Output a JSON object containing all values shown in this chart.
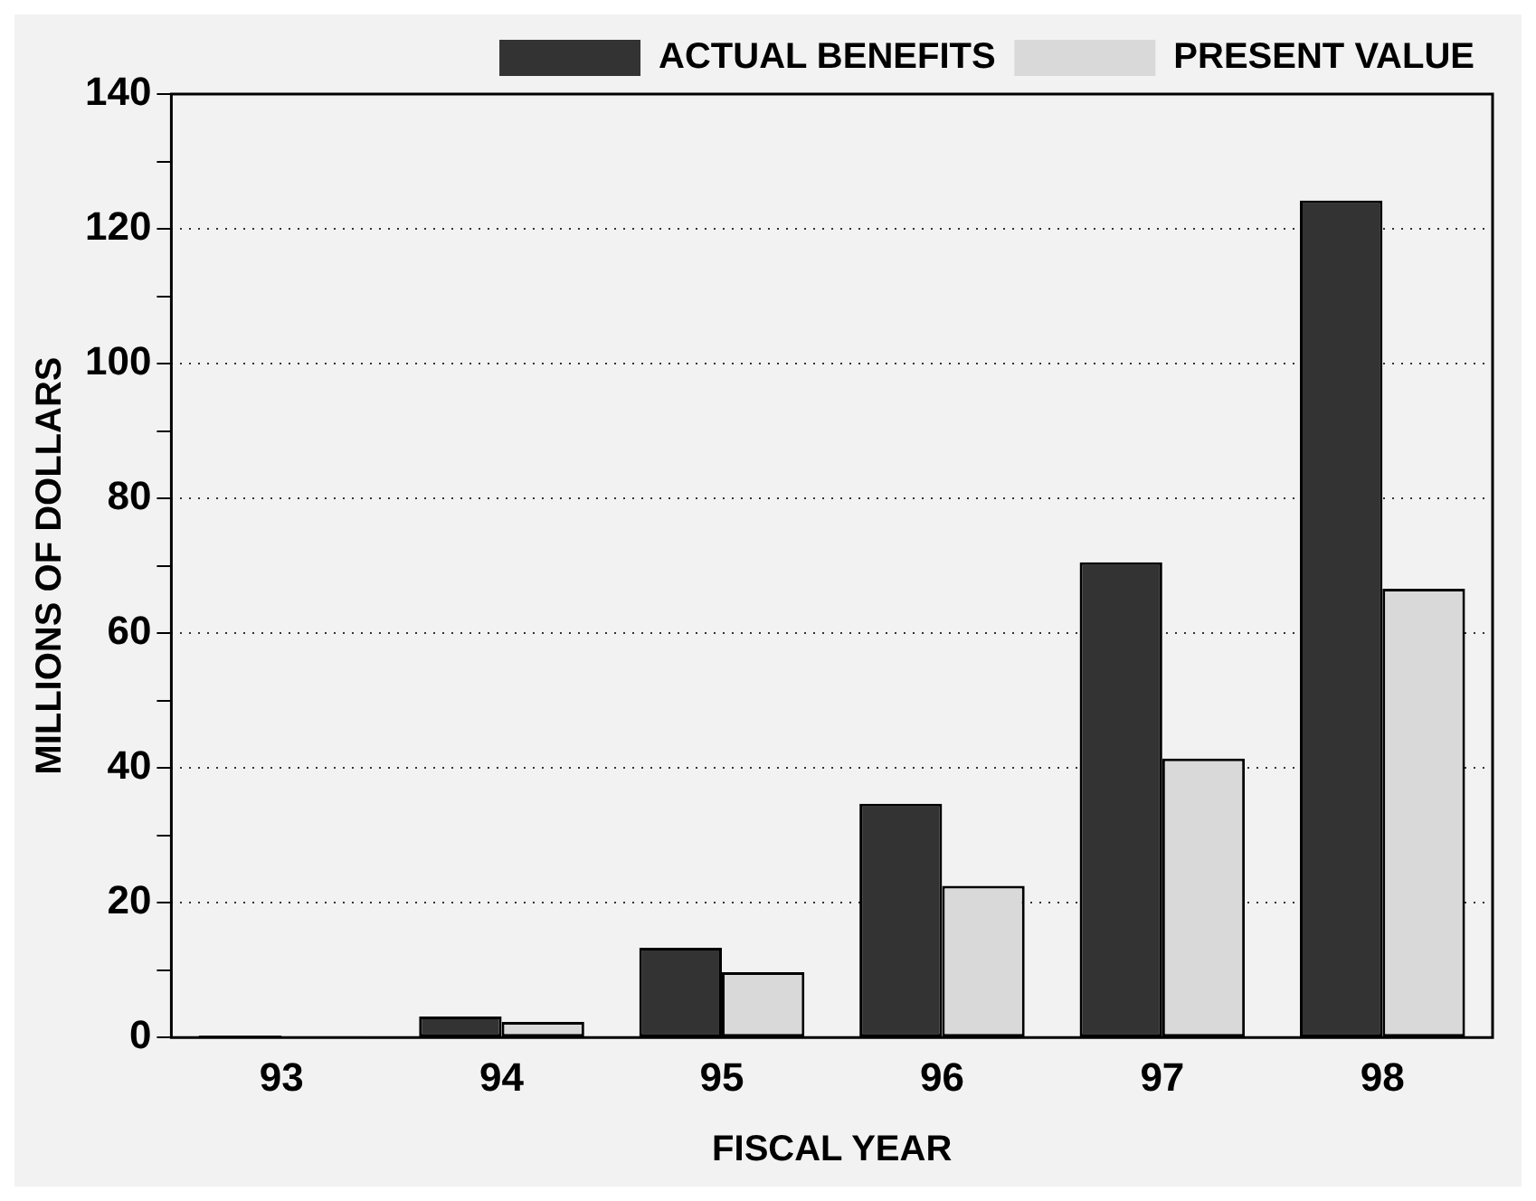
{
  "chart_data": {
    "type": "bar",
    "xlabel": "FISCAL YEAR",
    "ylabel": "MILLIONS OF DOLLARS",
    "categories": [
      "93",
      "94",
      "95",
      "96",
      "97",
      "98"
    ],
    "series": [
      {
        "name": "ACTUAL BENEFITS",
        "color": "#333333",
        "values": [
          0.3,
          3.1,
          13.3,
          34.7,
          70.5,
          124.2
        ]
      },
      {
        "name": "PRESENT VALUE",
        "color": "#d9d9d9",
        "values": [
          0.2,
          2.3,
          9.7,
          22.5,
          41.4,
          66.6
        ]
      }
    ],
    "ylim": [
      0,
      140
    ],
    "yticks": [
      0,
      {
        "value": 10,
        "label": null
      },
      20,
      {
        "value": 30,
        "label": null
      },
      40,
      {
        "value": 50,
        "label": null
      },
      60,
      {
        "value": 70,
        "label": null
      },
      80,
      {
        "value": 90,
        "label": null
      },
      100,
      {
        "value": 110,
        "label": null
      },
      120,
      {
        "value": 130,
        "label": null
      },
      140
    ],
    "grid": "y",
    "legend": "top right"
  }
}
